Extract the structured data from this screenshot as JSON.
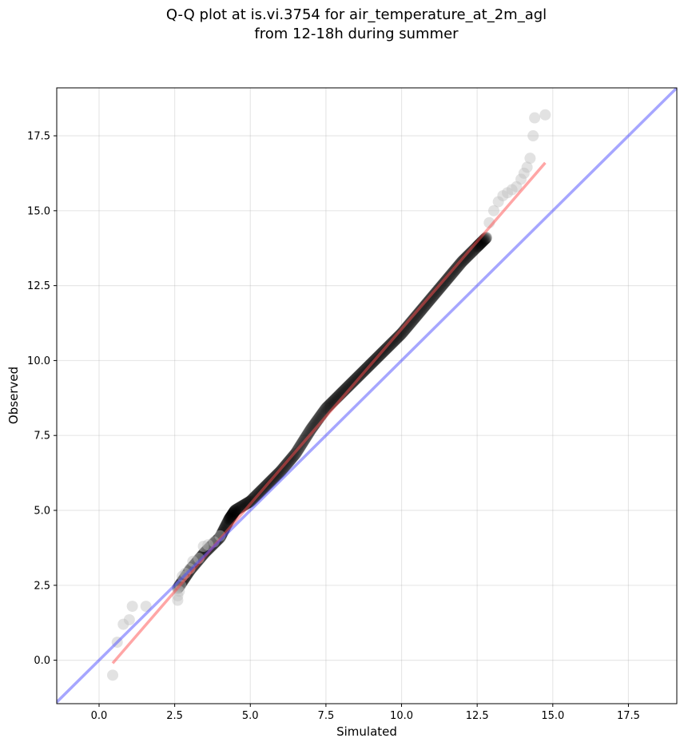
{
  "chart_data": {
    "type": "scatter",
    "title": "Q-Q plot at is.vi.3754 for air_temperature_at_2m_agl",
    "subtitle": "from 12-18h during summer",
    "xlabel": "Simulated",
    "ylabel": "Observed",
    "xlim": [
      -1.4,
      19.1
    ],
    "ylim": [
      -1.45,
      19.1
    ],
    "x_ticks": [
      0.0,
      2.5,
      5.0,
      7.5,
      10.0,
      12.5,
      15.0,
      17.5
    ],
    "y_ticks": [
      0.0,
      2.5,
      5.0,
      7.5,
      10.0,
      12.5,
      15.0,
      17.5
    ],
    "x_tick_labels": [
      "0.0",
      "2.5",
      "5.0",
      "7.5",
      "10.0",
      "12.5",
      "15.0",
      "17.5"
    ],
    "y_tick_labels": [
      "0.0",
      "2.5",
      "5.0",
      "7.5",
      "10.0",
      "12.5",
      "15.0",
      "17.5"
    ],
    "grid": true,
    "colors": {
      "points": "#000000",
      "fit_line": "#ff4d4d",
      "identity_line": "#4d4dff",
      "tail_points": "#bfbfbf"
    },
    "identity_line": {
      "x": [
        -1.4,
        19.1
      ],
      "y": [
        -1.4,
        19.1
      ]
    },
    "fit_line": {
      "x": [
        0.45,
        14.75
      ],
      "y": [
        -0.1,
        16.6
      ]
    },
    "quantile_curve": {
      "x": [
        2.6,
        3.0,
        3.5,
        4.0,
        4.3,
        4.5,
        5.0,
        5.5,
        6.0,
        6.5,
        7.0,
        7.5,
        8.0,
        8.5,
        9.0,
        9.5,
        10.0,
        10.5,
        11.0,
        11.5,
        12.0,
        12.5,
        12.8
      ],
      "y": [
        2.4,
        3.0,
        3.6,
        4.1,
        4.7,
        5.0,
        5.3,
        5.8,
        6.3,
        6.9,
        7.7,
        8.4,
        8.9,
        9.4,
        9.9,
        10.4,
        10.9,
        11.5,
        12.1,
        12.7,
        13.3,
        13.8,
        14.1
      ]
    },
    "tail_points": {
      "x": [
        0.45,
        0.6,
        0.8,
        1.0,
        1.1,
        1.55,
        2.6,
        2.6,
        2.65,
        2.7,
        2.75,
        2.85,
        3.0,
        3.1,
        3.3,
        3.45,
        3.6,
        3.8,
        4.0,
        12.9,
        13.05,
        13.2,
        13.35,
        13.5,
        13.65,
        13.8,
        13.95,
        14.05,
        14.15,
        14.25,
        14.35,
        14.4,
        14.75
      ],
      "y": [
        -0.5,
        0.6,
        1.2,
        1.35,
        1.8,
        1.8,
        2.0,
        2.15,
        2.3,
        2.5,
        2.8,
        2.9,
        3.05,
        3.3,
        3.4,
        3.8,
        3.85,
        3.95,
        4.15,
        14.6,
        15.0,
        15.3,
        15.5,
        15.6,
        15.7,
        15.8,
        16.05,
        16.25,
        16.45,
        16.75,
        17.5,
        18.1,
        18.2
      ]
    }
  }
}
